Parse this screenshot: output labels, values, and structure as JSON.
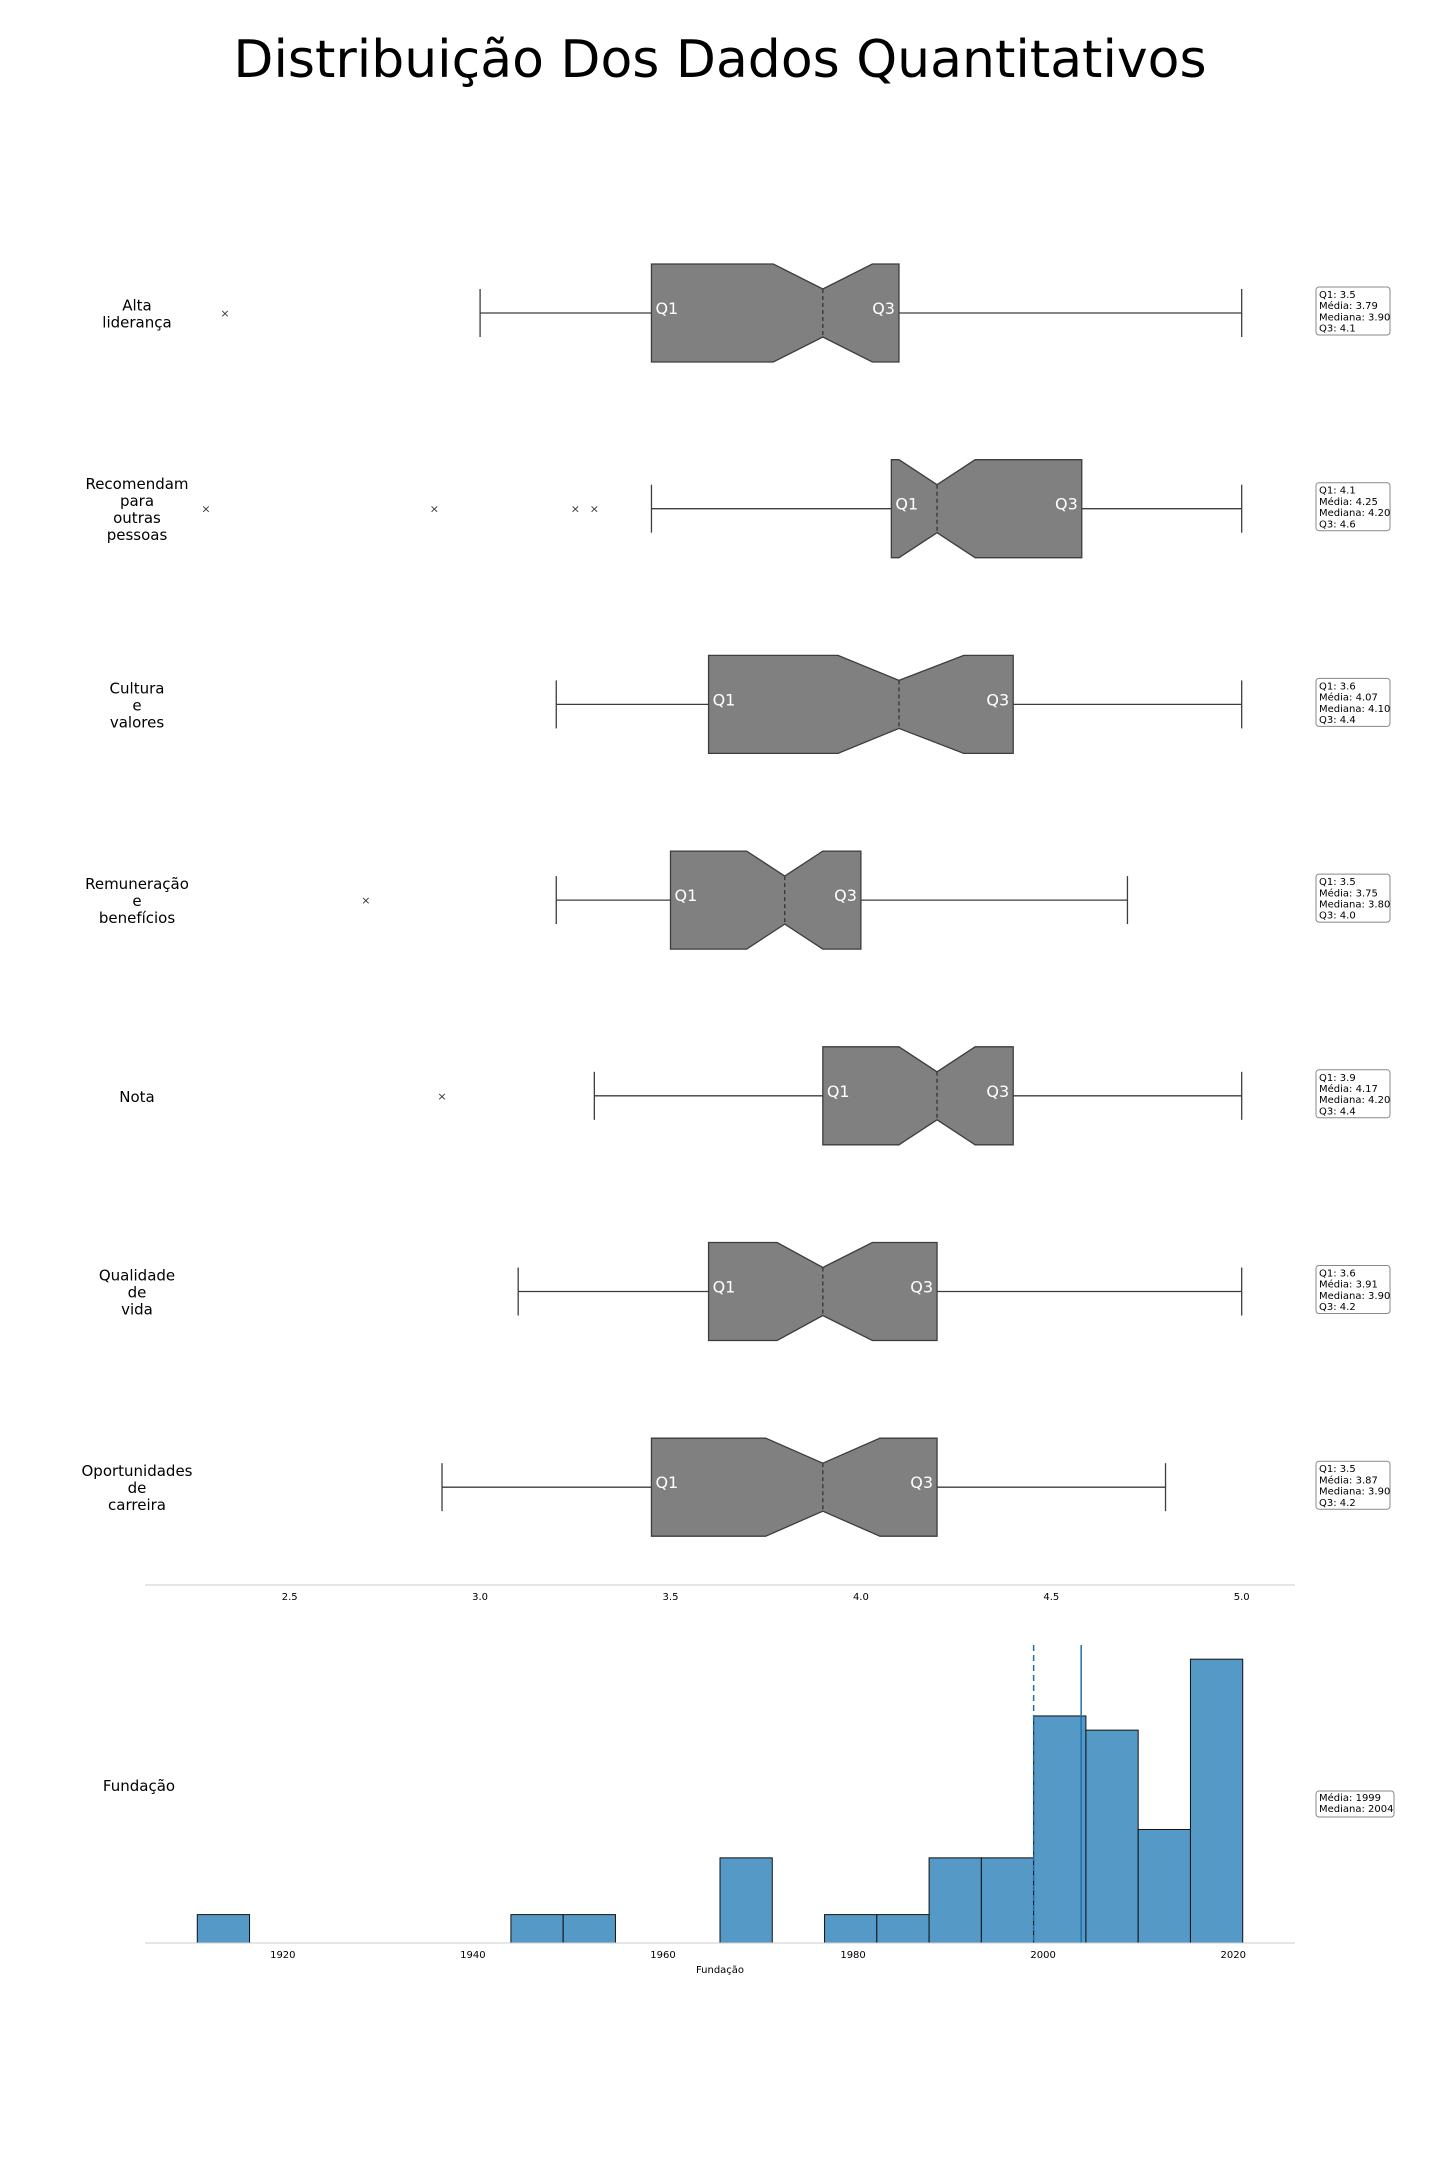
{
  "title": "Distribuição Dos Dados Quantitativos",
  "chart_data": [
    {
      "type": "boxplot",
      "notched": true,
      "orientation": "horizontal",
      "box_color": "#808080",
      "xlim": [
        2.12,
        5.14
      ],
      "x_ticks": [
        "2.5",
        "3.0",
        "3.5",
        "4.0",
        "4.5",
        "5.0"
      ],
      "series": [
        {
          "name": "Alta liderança",
          "label_lines": [
            "Alta",
            "liderança"
          ],
          "whisker_low": 3.0,
          "q1": 3.45,
          "median": 3.9,
          "q3": 4.1,
          "whisker_high": 5.0,
          "notch_low": 3.77,
          "notch_high": 4.03,
          "outliers": [
            2.33
          ],
          "q1_label": "Q1",
          "q3_label": "Q3",
          "stats": [
            "Q1: 3.5",
            "Média: 3.79",
            "Mediana: 3.90",
            "Q3: 4.1"
          ]
        },
        {
          "name": "Recomendam para outras pessoas",
          "label_lines": [
            "Recomendam",
            "para",
            "outras",
            "pessoas"
          ],
          "whisker_low": 3.45,
          "q1": 4.08,
          "median": 4.2,
          "q3": 4.58,
          "whisker_high": 5.0,
          "notch_low": 4.1,
          "notch_high": 4.3,
          "outliers": [
            2.28,
            2.88,
            3.25,
            3.3
          ],
          "q1_label": "Q1",
          "q3_label": "Q3",
          "stats": [
            "Q1: 4.1",
            "Média: 4.25",
            "Mediana: 4.20",
            "Q3: 4.6"
          ]
        },
        {
          "name": "Cultura e valores",
          "label_lines": [
            "Cultura",
            "e",
            "valores"
          ],
          "whisker_low": 3.2,
          "q1": 3.6,
          "median": 4.1,
          "q3": 4.4,
          "whisker_high": 5.0,
          "notch_low": 3.94,
          "notch_high": 4.27,
          "outliers": [],
          "q1_label": "Q1",
          "q3_label": "Q3",
          "stats": [
            "Q1: 3.6",
            "Média: 4.07",
            "Mediana: 4.10",
            "Q3: 4.4"
          ]
        },
        {
          "name": "Remuneração e benefícios",
          "label_lines": [
            "Remuneração",
            "e",
            "benefícios"
          ],
          "whisker_low": 3.2,
          "q1": 3.5,
          "median": 3.8,
          "q3": 4.0,
          "whisker_high": 4.7,
          "notch_low": 3.7,
          "notch_high": 3.9,
          "outliers": [
            2.7
          ],
          "q1_label": "Q1",
          "q3_label": "Q3",
          "stats": [
            "Q1: 3.5",
            "Média: 3.75",
            "Mediana: 3.80",
            "Q3: 4.0"
          ]
        },
        {
          "name": "Nota",
          "label_lines": [
            "Nota"
          ],
          "whisker_low": 3.3,
          "q1": 3.9,
          "median": 4.2,
          "q3": 4.4,
          "whisker_high": 5.0,
          "notch_low": 4.1,
          "notch_high": 4.3,
          "outliers": [
            2.9
          ],
          "q1_label": "Q1",
          "q3_label": "Q3",
          "stats": [
            "Q1: 3.9",
            "Média: 4.17",
            "Mediana: 4.20",
            "Q3: 4.4"
          ]
        },
        {
          "name": "Qualidade de vida",
          "label_lines": [
            "Qualidade",
            "de",
            "vida"
          ],
          "whisker_low": 3.1,
          "q1": 3.6,
          "median": 3.9,
          "q3": 4.2,
          "whisker_high": 5.0,
          "notch_low": 3.78,
          "notch_high": 4.03,
          "outliers": [],
          "q1_label": "Q1",
          "q3_label": "Q3",
          "stats": [
            "Q1: 3.6",
            "Média: 3.91",
            "Mediana: 3.90",
            "Q3: 4.2"
          ]
        },
        {
          "name": "Oportunidades de carreira",
          "label_lines": [
            "Oportunidades",
            "de",
            "carreira"
          ],
          "whisker_low": 2.9,
          "q1": 3.45,
          "median": 3.9,
          "q3": 4.2,
          "whisker_high": 4.8,
          "notch_low": 3.75,
          "notch_high": 4.05,
          "outliers": [],
          "q1_label": "Q1",
          "q3_label": "Q3",
          "stats": [
            "Q1: 3.5",
            "Média: 3.87",
            "Mediana: 3.90",
            "Q3: 4.2"
          ]
        }
      ]
    },
    {
      "type": "histogram",
      "name": "Fundação",
      "row_label": "Fundação",
      "xlabel": "Fundação",
      "bar_color": "#5599c7",
      "line_color": "#1f6fb0",
      "xlim": [
        1905.5,
        2026.5
      ],
      "x_ticks": [
        "1920",
        "1940",
        "1960",
        "1980",
        "2000",
        "2020"
      ],
      "bin_edges": [
        1911,
        1916.5,
        1922,
        1927.5,
        1933,
        1938.5,
        1944,
        1949.5,
        1955,
        1960.5,
        1966,
        1971.5,
        1977,
        1982.5,
        1988,
        1993.5,
        1999,
        2004.5,
        2010,
        2015.5,
        2021
      ],
      "counts": [
        1,
        0,
        0,
        0,
        0,
        0,
        1,
        1,
        0,
        0,
        3,
        0,
        1,
        1,
        3,
        3,
        8,
        7.5,
        4,
        10
      ],
      "ylim": [
        0,
        10.5
      ],
      "mean": 1999,
      "median": 2004,
      "stats": [
        "Média: 1999",
        "Mediana: 2004"
      ]
    }
  ]
}
